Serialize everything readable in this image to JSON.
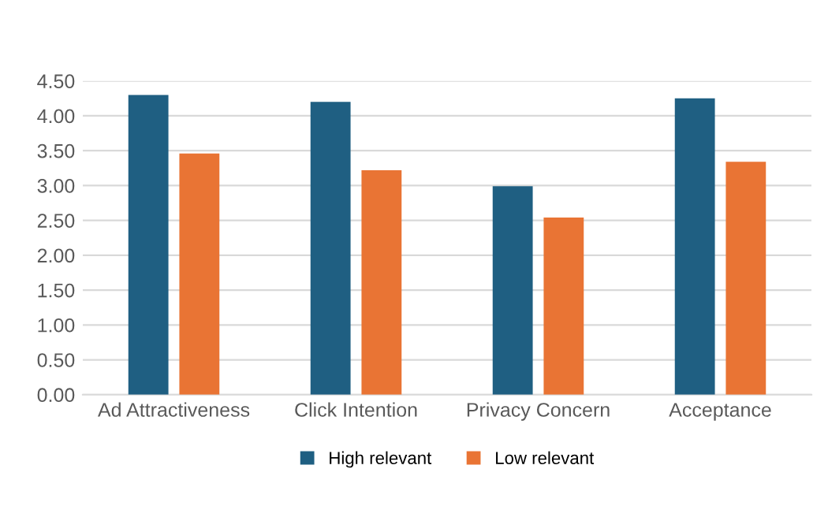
{
  "chart_data": {
    "type": "bar",
    "categories": [
      "Ad Attractiveness",
      "Click Intention",
      "Privacy Concern",
      "Acceptance"
    ],
    "series": [
      {
        "name": "High relevant",
        "color": "#1f5f82",
        "values": [
          4.3,
          4.2,
          2.99,
          4.25
        ]
      },
      {
        "name": "Low relevant",
        "color": "#e97434",
        "values": [
          3.46,
          3.22,
          2.54,
          3.34
        ]
      }
    ],
    "ylim": [
      0,
      4.5
    ],
    "yticks": [
      {
        "value": 0,
        "label": "0.00"
      },
      {
        "value": 0.5,
        "label": "0.50"
      },
      {
        "value": 1,
        "label": "1.00"
      },
      {
        "value": 1.5,
        "label": "1.50"
      },
      {
        "value": 2,
        "label": "2.00"
      },
      {
        "value": 2.5,
        "label": "2.50"
      },
      {
        "value": 3,
        "label": "3.00"
      },
      {
        "value": 3.5,
        "label": "3.50"
      },
      {
        "value": 4,
        "label": "4.00"
      },
      {
        "value": 4.5,
        "label": "4.50"
      }
    ],
    "grid": "y",
    "legend": "bottom"
  }
}
